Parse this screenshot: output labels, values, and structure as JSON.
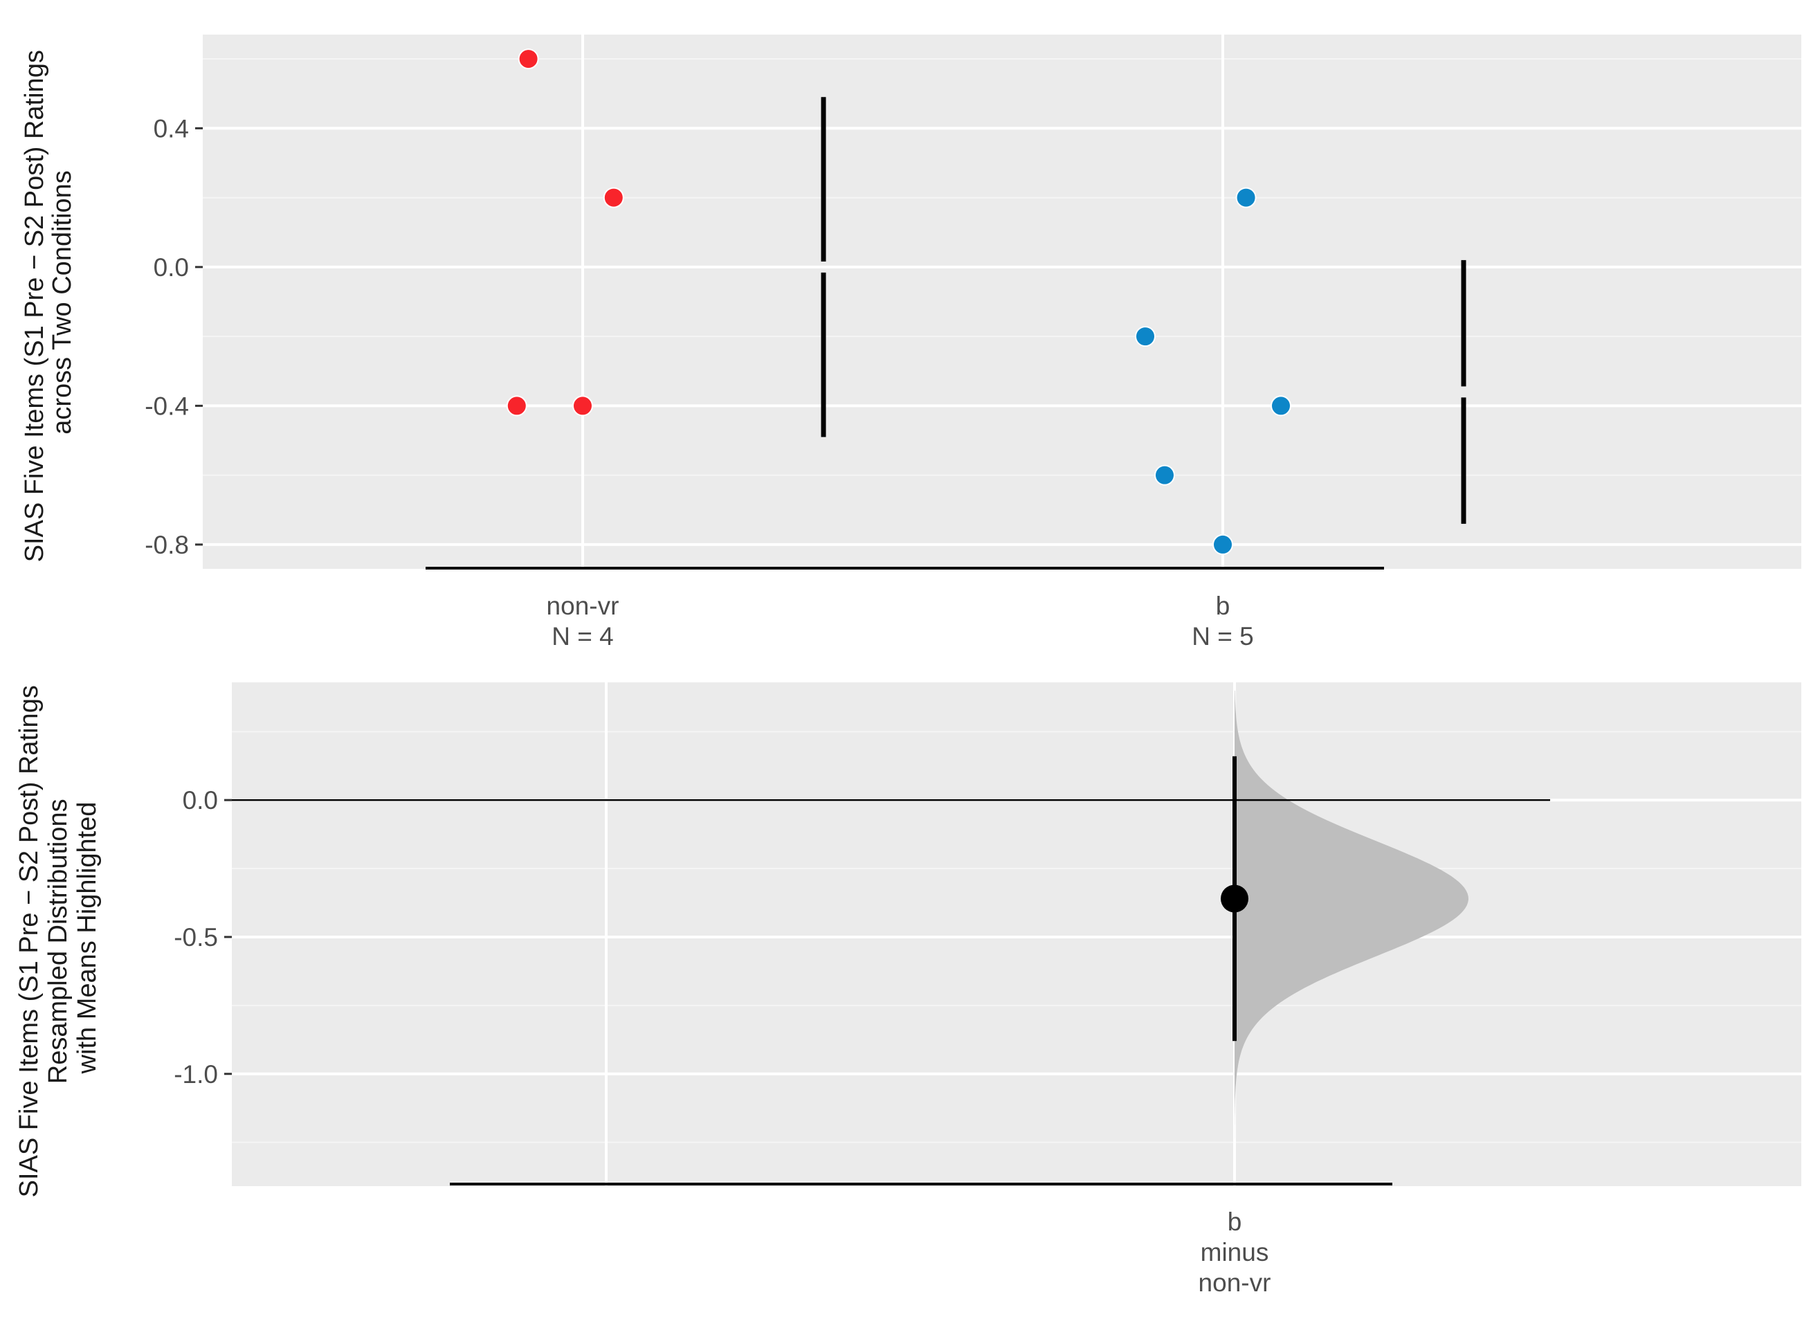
{
  "chart_data": [
    {
      "type": "scatter",
      "title": "",
      "ylabel": [
        "SIAS Five Items (S1 Pre − S2 Post) Ratings",
        "across Two Conditions"
      ],
      "xlabel": "",
      "ylim": [
        -0.87,
        0.67
      ],
      "y_ticks": [
        0.4,
        0.0,
        -0.4,
        -0.8
      ],
      "y_tick_labels": [
        "0.4",
        "0.0",
        "-0.4",
        "-0.8"
      ],
      "grid": true,
      "categories": [
        "non-vr",
        "b"
      ],
      "category_labels": [
        [
          "non-vr",
          "N = 4"
        ],
        [
          "b",
          "N = 5"
        ]
      ],
      "series": [
        {
          "category": "non-vr",
          "color": "#f8242b",
          "points": [
            [
              -0.14,
              0.6
            ],
            [
              0.08,
              0.2
            ],
            [
              -0.17,
              -0.4
            ],
            [
              0.0,
              -0.4
            ]
          ],
          "summary": {
            "mean": 0.0,
            "low": -0.49,
            "high": 0.49
          }
        },
        {
          "category": "b",
          "color": "#0d86c8",
          "points": [
            [
              0.06,
              0.2
            ],
            [
              -0.2,
              -0.2
            ],
            [
              0.15,
              -0.4
            ],
            [
              -0.15,
              -0.6
            ],
            [
              0.0,
              -0.8
            ]
          ],
          "summary": {
            "mean": -0.36,
            "low": -0.74,
            "high": 0.02
          }
        }
      ]
    },
    {
      "type": "distribution",
      "title": "",
      "ylabel": [
        "SIAS Five Items (S1 Pre − S2 Post) Ratings",
        "Resampled Distributions",
        "with Means Highlighted"
      ],
      "xlabel": "",
      "ylim": [
        -1.41,
        0.43
      ],
      "y_ticks": [
        0.0,
        -0.5,
        -1.0
      ],
      "y_tick_labels": [
        "0.0",
        "-0.5",
        "-1.0"
      ],
      "grid": true,
      "categories": [
        "non-vr",
        "b minus non-vr"
      ],
      "category_labels": [
        [],
        [
          "b",
          "minus",
          "non-vr"
        ]
      ],
      "reference_line": 0.0,
      "mean_difference": -0.36,
      "ci": [
        -0.88,
        0.16
      ],
      "distribution_range": [
        -1.32,
        0.4
      ],
      "distribution_sd": 0.21,
      "fill_color": "#bebebe"
    }
  ]
}
